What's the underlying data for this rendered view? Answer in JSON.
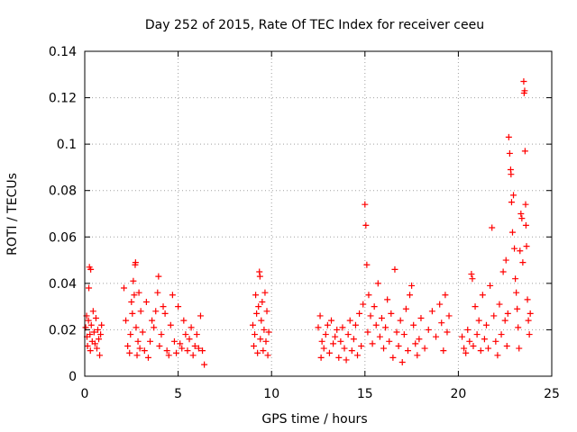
{
  "chart_data": {
    "type": "scatter",
    "title": "Day 252 of 2015, Rate Of TEC Index for receiver ceeu",
    "xlabel": "GPS time / hours",
    "ylabel": "ROTI / TECUs",
    "xlim": [
      0,
      25
    ],
    "ylim": [
      0,
      0.14
    ],
    "x_ticks": [
      0,
      5,
      10,
      15,
      20,
      25
    ],
    "y_ticks": [
      0,
      0.02,
      0.04,
      0.06,
      0.08,
      0.1,
      0.12,
      0.14
    ],
    "x_tick_labels": [
      "0",
      "5",
      "10",
      "15",
      "20",
      "25"
    ],
    "y_tick_labels": [
      "0",
      "0.02",
      "0.04",
      "0.06",
      "0.08",
      "0.1",
      "0.12",
      "0.14"
    ],
    "grid": true,
    "marker": "+",
    "marker_color": "#ff0000",
    "series": [
      {
        "name": "ROTI",
        "points": [
          [
            0.05,
            0.021
          ],
          [
            0.1,
            0.026
          ],
          [
            0.12,
            0.017
          ],
          [
            0.15,
            0.013
          ],
          [
            0.2,
            0.024
          ],
          [
            0.22,
            0.038
          ],
          [
            0.25,
            0.047
          ],
          [
            0.28,
            0.018
          ],
          [
            0.3,
            0.011
          ],
          [
            0.32,
            0.046
          ],
          [
            0.35,
            0.022
          ],
          [
            0.4,
            0.015
          ],
          [
            0.45,
            0.028
          ],
          [
            0.5,
            0.019
          ],
          [
            0.55,
            0.014
          ],
          [
            0.6,
            0.025
          ],
          [
            0.65,
            0.012
          ],
          [
            0.7,
            0.02
          ],
          [
            0.75,
            0.016
          ],
          [
            0.8,
            0.009
          ],
          [
            0.85,
            0.018
          ],
          [
            0.9,
            0.022
          ],
          [
            2.1,
            0.038
          ],
          [
            2.2,
            0.024
          ],
          [
            2.3,
            0.013
          ],
          [
            2.4,
            0.01
          ],
          [
            2.45,
            0.018
          ],
          [
            2.5,
            0.032
          ],
          [
            2.55,
            0.027
          ],
          [
            2.6,
            0.041
          ],
          [
            2.65,
            0.035
          ],
          [
            2.7,
            0.048
          ],
          [
            2.72,
            0.049
          ],
          [
            2.75,
            0.021
          ],
          [
            2.8,
            0.009
          ],
          [
            2.85,
            0.015
          ],
          [
            2.9,
            0.036
          ],
          [
            2.95,
            0.012
          ],
          [
            3.0,
            0.028
          ],
          [
            3.1,
            0.019
          ],
          [
            3.2,
            0.011
          ],
          [
            3.3,
            0.032
          ],
          [
            3.4,
            0.008
          ],
          [
            3.5,
            0.015
          ],
          [
            3.6,
            0.024
          ],
          [
            3.7,
            0.021
          ],
          [
            3.8,
            0.028
          ],
          [
            3.9,
            0.036
          ],
          [
            3.95,
            0.043
          ],
          [
            4.0,
            0.013
          ],
          [
            4.1,
            0.018
          ],
          [
            4.2,
            0.03
          ],
          [
            4.3,
            0.027
          ],
          [
            4.4,
            0.011
          ],
          [
            4.5,
            0.009
          ],
          [
            4.6,
            0.022
          ],
          [
            4.7,
            0.035
          ],
          [
            4.8,
            0.015
          ],
          [
            4.9,
            0.01
          ],
          [
            5.0,
            0.03
          ],
          [
            5.1,
            0.014
          ],
          [
            5.2,
            0.012
          ],
          [
            5.3,
            0.024
          ],
          [
            5.4,
            0.018
          ],
          [
            5.5,
            0.011
          ],
          [
            5.6,
            0.016
          ],
          [
            5.7,
            0.021
          ],
          [
            5.8,
            0.009
          ],
          [
            5.9,
            0.013
          ],
          [
            6.0,
            0.018
          ],
          [
            6.1,
            0.012
          ],
          [
            6.2,
            0.026
          ],
          [
            6.3,
            0.011
          ],
          [
            6.4,
            0.005
          ],
          [
            9.0,
            0.022
          ],
          [
            9.05,
            0.013
          ],
          [
            9.1,
            0.018
          ],
          [
            9.15,
            0.035
          ],
          [
            9.2,
            0.027
          ],
          [
            9.25,
            0.01
          ],
          [
            9.3,
            0.03
          ],
          [
            9.35,
            0.045
          ],
          [
            9.38,
            0.043
          ],
          [
            9.4,
            0.016
          ],
          [
            9.45,
            0.024
          ],
          [
            9.5,
            0.032
          ],
          [
            9.55,
            0.011
          ],
          [
            9.6,
            0.02
          ],
          [
            9.65,
            0.036
          ],
          [
            9.7,
            0.015
          ],
          [
            9.75,
            0.028
          ],
          [
            9.8,
            0.009
          ],
          [
            9.85,
            0.019
          ],
          [
            12.5,
            0.021
          ],
          [
            12.6,
            0.026
          ],
          [
            12.65,
            0.008
          ],
          [
            12.7,
            0.015
          ],
          [
            12.8,
            0.012
          ],
          [
            12.9,
            0.018
          ],
          [
            13.0,
            0.022
          ],
          [
            13.1,
            0.01
          ],
          [
            13.2,
            0.024
          ],
          [
            13.3,
            0.014
          ],
          [
            13.4,
            0.017
          ],
          [
            13.5,
            0.02
          ],
          [
            13.6,
            0.008
          ],
          [
            13.7,
            0.015
          ],
          [
            13.8,
            0.021
          ],
          [
            13.9,
            0.012
          ],
          [
            14.0,
            0.007
          ],
          [
            14.1,
            0.018
          ],
          [
            14.2,
            0.024
          ],
          [
            14.3,
            0.011
          ],
          [
            14.4,
            0.016
          ],
          [
            14.5,
            0.022
          ],
          [
            14.6,
            0.009
          ],
          [
            14.7,
            0.027
          ],
          [
            14.8,
            0.013
          ],
          [
            14.9,
            0.031
          ],
          [
            15.0,
            0.074
          ],
          [
            15.05,
            0.065
          ],
          [
            15.1,
            0.048
          ],
          [
            15.15,
            0.019
          ],
          [
            15.2,
            0.035
          ],
          [
            15.3,
            0.026
          ],
          [
            15.4,
            0.014
          ],
          [
            15.5,
            0.03
          ],
          [
            15.6,
            0.022
          ],
          [
            15.7,
            0.04
          ],
          [
            15.8,
            0.017
          ],
          [
            15.9,
            0.025
          ],
          [
            16.0,
            0.012
          ],
          [
            16.1,
            0.021
          ],
          [
            16.2,
            0.033
          ],
          [
            16.3,
            0.015
          ],
          [
            16.4,
            0.027
          ],
          [
            16.5,
            0.008
          ],
          [
            16.6,
            0.046
          ],
          [
            16.7,
            0.019
          ],
          [
            16.8,
            0.013
          ],
          [
            16.9,
            0.024
          ],
          [
            17.0,
            0.006
          ],
          [
            17.1,
            0.018
          ],
          [
            17.2,
            0.029
          ],
          [
            17.3,
            0.011
          ],
          [
            17.4,
            0.035
          ],
          [
            17.5,
            0.039
          ],
          [
            17.6,
            0.022
          ],
          [
            17.7,
            0.014
          ],
          [
            17.8,
            0.009
          ],
          [
            17.9,
            0.016
          ],
          [
            18.0,
            0.025
          ],
          [
            18.2,
            0.012
          ],
          [
            18.4,
            0.02
          ],
          [
            18.6,
            0.028
          ],
          [
            18.8,
            0.017
          ],
          [
            19.0,
            0.031
          ],
          [
            19.1,
            0.023
          ],
          [
            19.2,
            0.011
          ],
          [
            19.3,
            0.035
          ],
          [
            19.4,
            0.019
          ],
          [
            19.5,
            0.026
          ],
          [
            20.2,
            0.017
          ],
          [
            20.3,
            0.012
          ],
          [
            20.4,
            0.01
          ],
          [
            20.5,
            0.02
          ],
          [
            20.6,
            0.015
          ],
          [
            20.7,
            0.044
          ],
          [
            20.75,
            0.042
          ],
          [
            20.8,
            0.013
          ],
          [
            20.9,
            0.03
          ],
          [
            21.0,
            0.018
          ],
          [
            21.1,
            0.024
          ],
          [
            21.2,
            0.011
          ],
          [
            21.3,
            0.035
          ],
          [
            21.4,
            0.016
          ],
          [
            21.5,
            0.022
          ],
          [
            21.6,
            0.012
          ],
          [
            21.7,
            0.039
          ],
          [
            21.8,
            0.064
          ],
          [
            21.9,
            0.026
          ],
          [
            22.0,
            0.015
          ],
          [
            22.1,
            0.009
          ],
          [
            22.2,
            0.031
          ],
          [
            22.3,
            0.018
          ],
          [
            22.4,
            0.045
          ],
          [
            22.5,
            0.024
          ],
          [
            22.55,
            0.05
          ],
          [
            22.6,
            0.013
          ],
          [
            22.65,
            0.027
          ],
          [
            22.7,
            0.103
          ],
          [
            22.75,
            0.096
          ],
          [
            22.8,
            0.089
          ],
          [
            22.82,
            0.087
          ],
          [
            22.85,
            0.075
          ],
          [
            22.9,
            0.062
          ],
          [
            22.95,
            0.078
          ],
          [
            23.0,
            0.055
          ],
          [
            23.05,
            0.042
          ],
          [
            23.1,
            0.036
          ],
          [
            23.15,
            0.029
          ],
          [
            23.2,
            0.021
          ],
          [
            23.25,
            0.012
          ],
          [
            23.3,
            0.054
          ],
          [
            23.35,
            0.07
          ],
          [
            23.4,
            0.068
          ],
          [
            23.45,
            0.049
          ],
          [
            23.5,
            0.127
          ],
          [
            23.52,
            0.122
          ],
          [
            23.55,
            0.123
          ],
          [
            23.57,
            0.097
          ],
          [
            23.6,
            0.074
          ],
          [
            23.62,
            0.065
          ],
          [
            23.65,
            0.056
          ],
          [
            23.7,
            0.033
          ],
          [
            23.75,
            0.024
          ],
          [
            23.8,
            0.018
          ],
          [
            23.85,
            0.027
          ]
        ]
      }
    ]
  }
}
